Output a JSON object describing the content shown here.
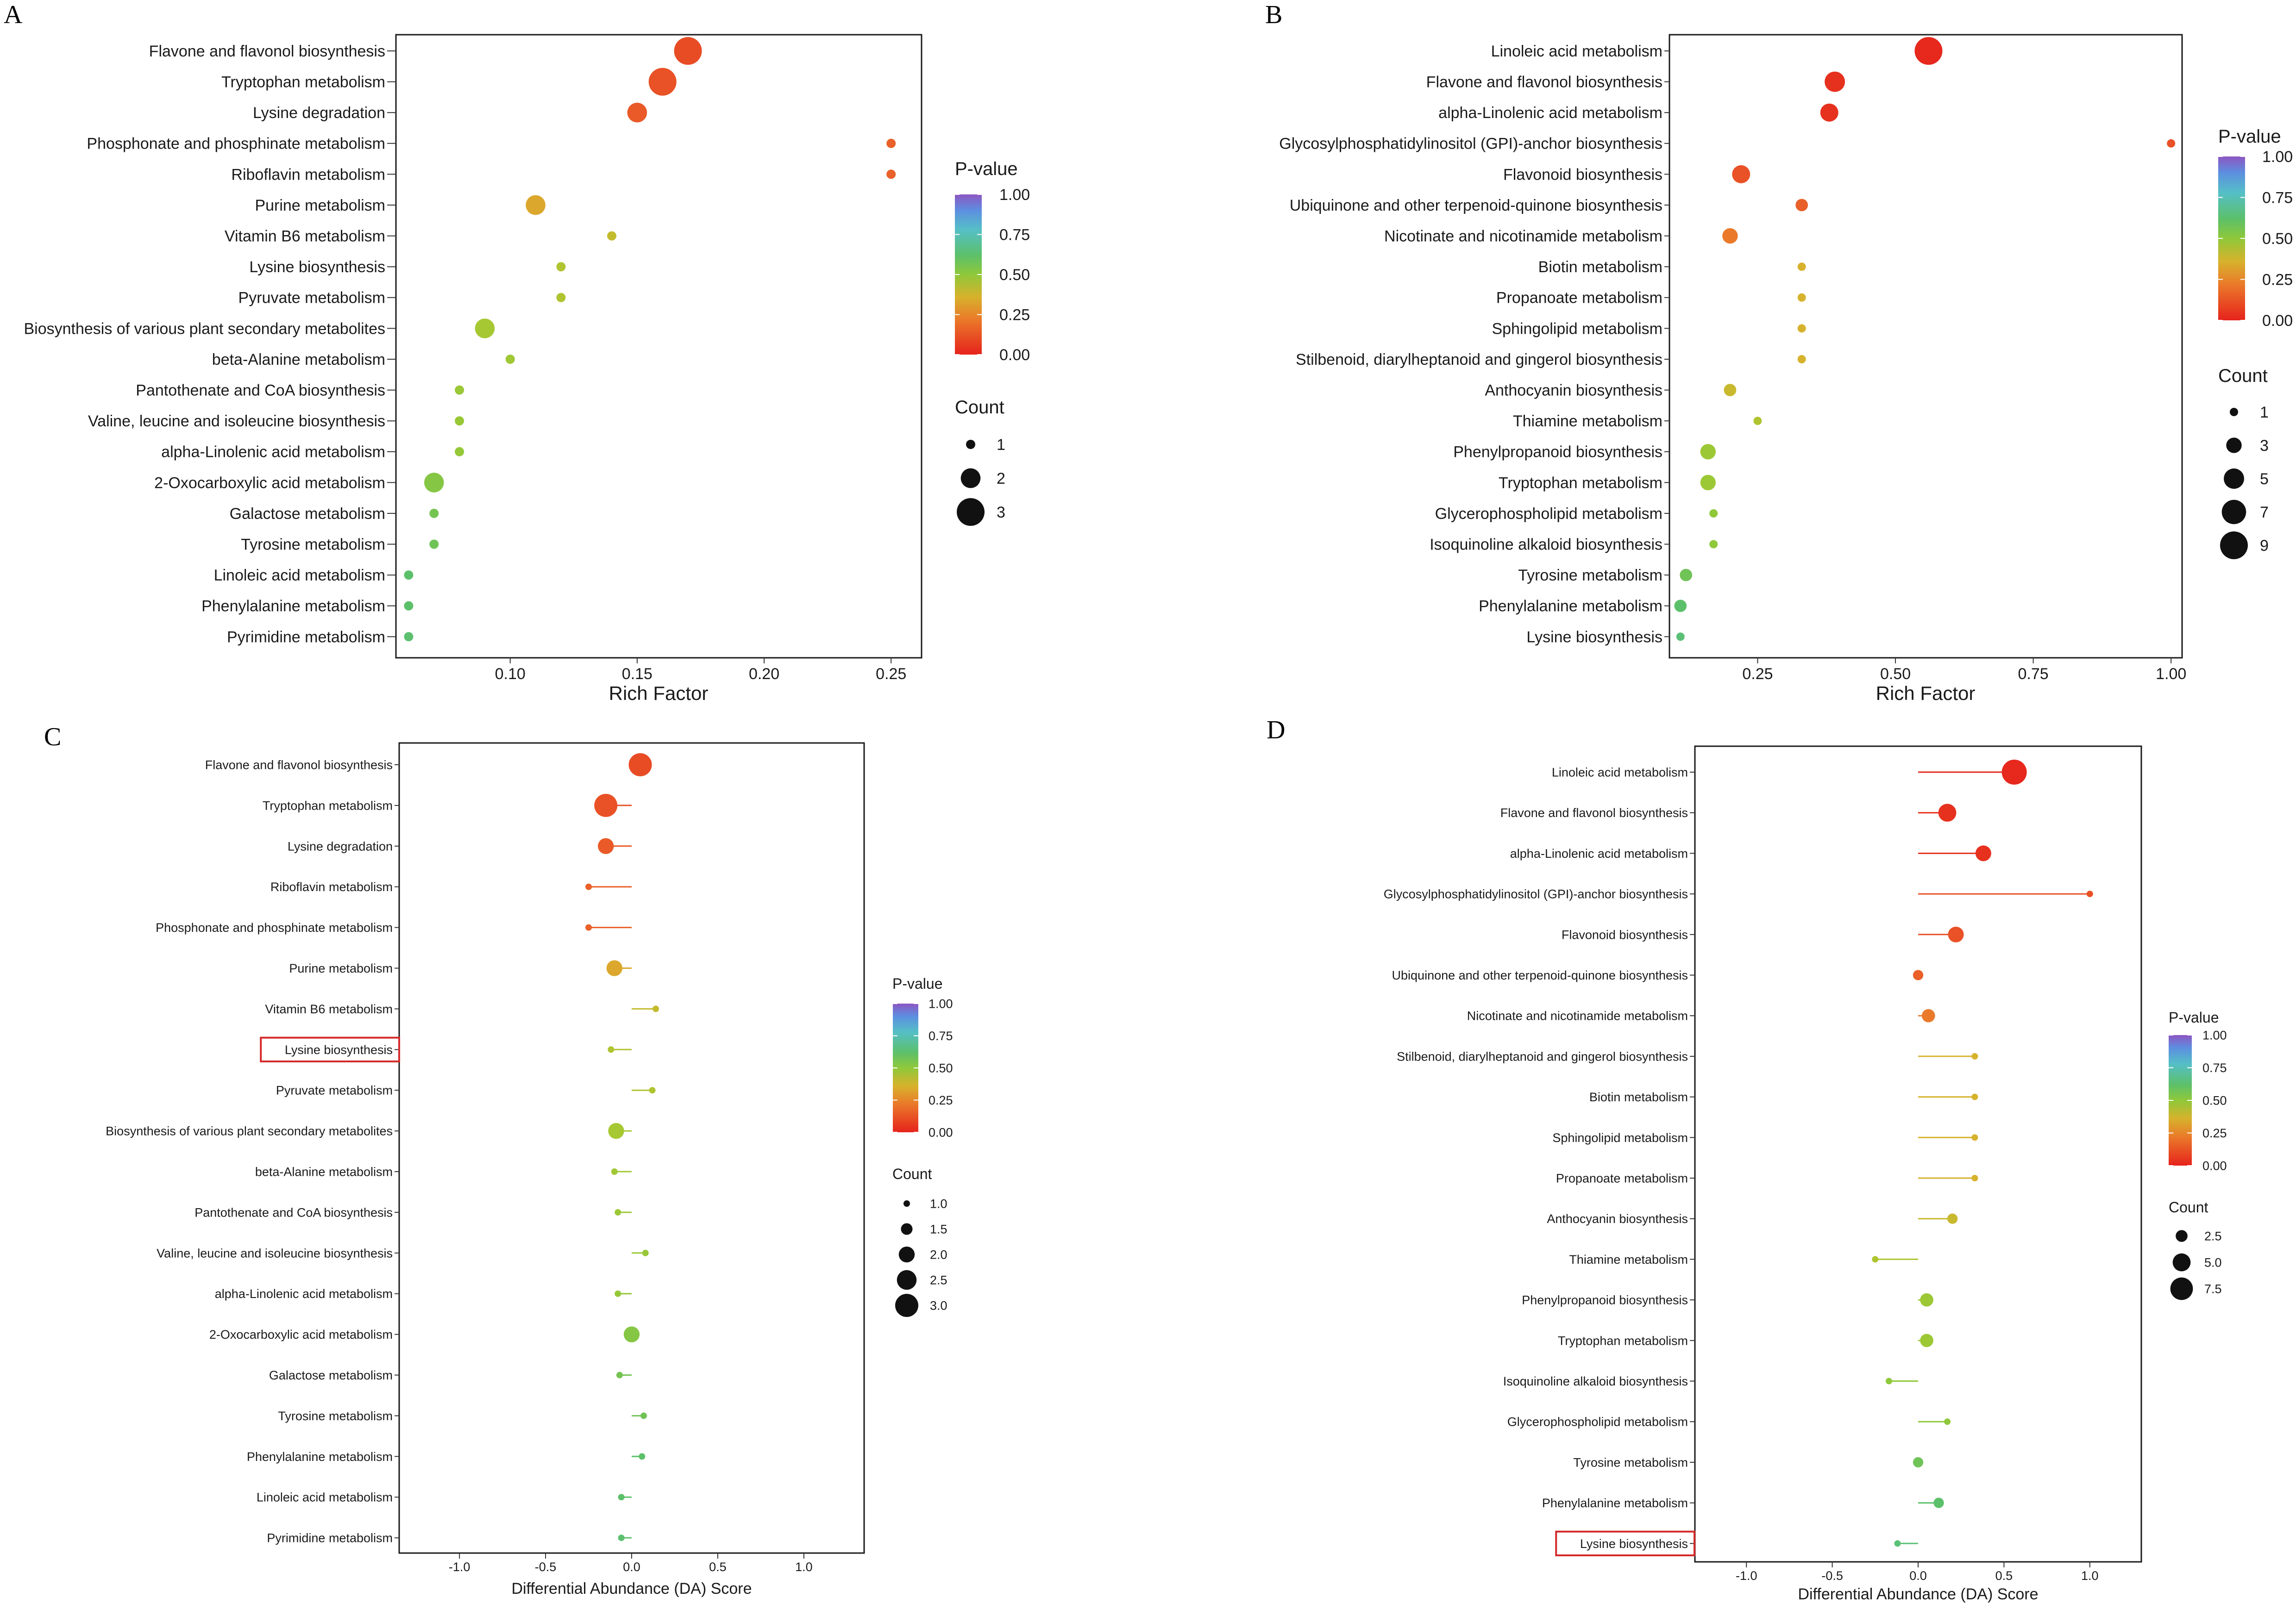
{
  "chart_data": [
    {
      "panel": "A",
      "type": "scatter",
      "xlabel": "Rich Factor",
      "ylabel": "",
      "xlim": [
        0.055,
        0.262
      ],
      "xticks": [
        "0.10",
        "0.15",
        "0.20",
        "0.25"
      ],
      "xtick_values": [
        0.1,
        0.15,
        0.2,
        0.25
      ],
      "legend_colour_title": "P-value",
      "legend_colour_ticks": [
        "1.00",
        "0.75",
        "0.50",
        "0.25",
        "0.00"
      ],
      "legend_size_title": "Count",
      "legend_size_labels": [
        "1",
        "2",
        "3"
      ],
      "legend_size_values": [
        1,
        2,
        3
      ],
      "count_range": [
        1,
        3
      ],
      "pathways": [
        {
          "label": "Flavone and flavonol biosynthesis",
          "x": 0.17,
          "count": 3,
          "p": 0.09
        },
        {
          "label": "Tryptophan metabolism",
          "x": 0.16,
          "count": 3,
          "p": 0.1
        },
        {
          "label": "Lysine degradation",
          "x": 0.15,
          "count": 2,
          "p": 0.12
        },
        {
          "label": "Phosphonate and phosphinate metabolism",
          "x": 0.25,
          "count": 1,
          "p": 0.14
        },
        {
          "label": "Riboflavin metabolism",
          "x": 0.25,
          "count": 1,
          "p": 0.14
        },
        {
          "label": "Purine metabolism",
          "x": 0.11,
          "count": 2,
          "p": 0.3
        },
        {
          "label": "Vitamin B6 metabolism",
          "x": 0.14,
          "count": 1,
          "p": 0.36
        },
        {
          "label": "Lysine biosynthesis",
          "x": 0.12,
          "count": 1,
          "p": 0.4
        },
        {
          "label": "Pyruvate metabolism",
          "x": 0.12,
          "count": 1,
          "p": 0.4
        },
        {
          "label": "Biosynthesis of various plant secondary metabolites",
          "x": 0.09,
          "count": 2,
          "p": 0.42
        },
        {
          "label": "beta-Alanine metabolism",
          "x": 0.1,
          "count": 1,
          "p": 0.44
        },
        {
          "label": "Pantothenate and CoA biosynthesis",
          "x": 0.08,
          "count": 1,
          "p": 0.46
        },
        {
          "label": "Valine, leucine and isoleucine biosynthesis",
          "x": 0.08,
          "count": 1,
          "p": 0.47
        },
        {
          "label": "alpha-Linolenic acid metabolism",
          "x": 0.08,
          "count": 1,
          "p": 0.48
        },
        {
          "label": "2-Oxocarboxylic acid metabolism",
          "x": 0.07,
          "count": 2,
          "p": 0.52
        },
        {
          "label": "Galactose metabolism",
          "x": 0.07,
          "count": 1,
          "p": 0.55
        },
        {
          "label": "Tyrosine metabolism",
          "x": 0.07,
          "count": 1,
          "p": 0.56
        },
        {
          "label": "Linoleic acid metabolism",
          "x": 0.06,
          "count": 1,
          "p": 0.6
        },
        {
          "label": "Phenylalanine metabolism",
          "x": 0.06,
          "count": 1,
          "p": 0.6
        },
        {
          "label": "Pyrimidine metabolism",
          "x": 0.06,
          "count": 1,
          "p": 0.61
        }
      ]
    },
    {
      "panel": "B",
      "type": "scatter",
      "xlabel": "Rich Factor",
      "ylabel": "",
      "xlim": [
        0.09,
        1.02
      ],
      "xticks": [
        "0.25",
        "0.50",
        "0.75",
        "1.00"
      ],
      "xtick_values": [
        0.25,
        0.5,
        0.75,
        1.0
      ],
      "legend_colour_title": "P-value",
      "legend_colour_ticks": [
        "1.00",
        "0.75",
        "0.50",
        "0.25",
        "0.00"
      ],
      "legend_size_title": "Count",
      "legend_size_labels": [
        "1",
        "3",
        "5",
        "7",
        "9"
      ],
      "legend_size_values": [
        1,
        3,
        5,
        7,
        9
      ],
      "count_range": [
        1,
        9
      ],
      "pathways": [
        {
          "label": "Linoleic acid metabolism",
          "x": 0.56,
          "count": 9,
          "p": 0.01
        },
        {
          "label": "Flavone and flavonol biosynthesis",
          "x": 0.39,
          "count": 5,
          "p": 0.03
        },
        {
          "label": "alpha-Linolenic acid metabolism",
          "x": 0.38,
          "count": 4,
          "p": 0.03
        },
        {
          "label": "Glycosylphosphatidylinositol (GPI)-anchor biosynthesis",
          "x": 1.0,
          "count": 1,
          "p": 0.1
        },
        {
          "label": "Flavonoid biosynthesis",
          "x": 0.22,
          "count": 4,
          "p": 0.1
        },
        {
          "label": "Ubiquinone and other terpenoid-quinone biosynthesis",
          "x": 0.33,
          "count": 2,
          "p": 0.14
        },
        {
          "label": "Nicotinate and nicotinamide metabolism",
          "x": 0.2,
          "count": 3,
          "p": 0.22
        },
        {
          "label": "Biotin metabolism",
          "x": 0.33,
          "count": 1,
          "p": 0.32
        },
        {
          "label": "Propanoate metabolism",
          "x": 0.33,
          "count": 1,
          "p": 0.32
        },
        {
          "label": "Sphingolipid metabolism",
          "x": 0.33,
          "count": 1,
          "p": 0.32
        },
        {
          "label": "Stilbenoid, diarylheptanoid and gingerol biosynthesis",
          "x": 0.33,
          "count": 1,
          "p": 0.32
        },
        {
          "label": "Anthocyanin biosynthesis",
          "x": 0.2,
          "count": 2,
          "p": 0.35
        },
        {
          "label": "Thiamine metabolism",
          "x": 0.25,
          "count": 1,
          "p": 0.4
        },
        {
          "label": "Phenylpropanoid biosynthesis",
          "x": 0.16,
          "count": 3,
          "p": 0.45
        },
        {
          "label": "Tryptophan metabolism",
          "x": 0.16,
          "count": 3,
          "p": 0.45
        },
        {
          "label": "Glycerophospholipid metabolism",
          "x": 0.17,
          "count": 1,
          "p": 0.5
        },
        {
          "label": "Isoquinoline alkaloid biosynthesis",
          "x": 0.17,
          "count": 1,
          "p": 0.5
        },
        {
          "label": "Tyrosine metabolism",
          "x": 0.12,
          "count": 2,
          "p": 0.56
        },
        {
          "label": "Phenylalanine metabolism",
          "x": 0.11,
          "count": 2,
          "p": 0.6
        },
        {
          "label": "Lysine biosynthesis",
          "x": 0.11,
          "count": 1,
          "p": 0.62
        }
      ]
    },
    {
      "panel": "C",
      "type": "lollipop",
      "xlabel": "Differential Abundance (DA) Score",
      "ylabel": "",
      "xlim": [
        -1.35,
        1.35
      ],
      "xticks": [
        "-1.0",
        "-0.5",
        "0.0",
        "0.5",
        "1.0"
      ],
      "xtick_values": [
        -1.0,
        -0.5,
        0.0,
        0.5,
        1.0
      ],
      "legend_colour_title": "P-value",
      "legend_colour_ticks": [
        "1.00",
        "0.75",
        "0.50",
        "0.25",
        "0.00"
      ],
      "legend_size_title": "Count",
      "legend_size_labels": [
        "1.0",
        "1.5",
        "2.0",
        "2.5",
        "3.0"
      ],
      "legend_size_values": [
        1.0,
        1.5,
        2.0,
        2.5,
        3.0
      ],
      "count_range": [
        1,
        3
      ],
      "highlighted": "Lysine biosynthesis",
      "pathways": [
        {
          "label": "Flavone and flavonol biosynthesis",
          "x": 0.05,
          "count": 3,
          "p": 0.09
        },
        {
          "label": "Tryptophan metabolism",
          "x": -0.15,
          "count": 3,
          "p": 0.1
        },
        {
          "label": "Lysine degradation",
          "x": -0.15,
          "count": 2,
          "p": 0.12
        },
        {
          "label": "Riboflavin metabolism",
          "x": -0.25,
          "count": 1,
          "p": 0.14
        },
        {
          "label": "Phosphonate and phosphinate metabolism",
          "x": -0.25,
          "count": 1,
          "p": 0.14
        },
        {
          "label": "Purine metabolism",
          "x": -0.1,
          "count": 2,
          "p": 0.3
        },
        {
          "label": "Vitamin B6 metabolism",
          "x": 0.14,
          "count": 1,
          "p": 0.36
        },
        {
          "label": "Lysine biosynthesis",
          "x": -0.12,
          "count": 1,
          "p": 0.4
        },
        {
          "label": "Pyruvate metabolism",
          "x": 0.12,
          "count": 1,
          "p": 0.4
        },
        {
          "label": "Biosynthesis of various plant secondary metabolites",
          "x": -0.09,
          "count": 2,
          "p": 0.42
        },
        {
          "label": "beta-Alanine metabolism",
          "x": -0.1,
          "count": 1,
          "p": 0.44
        },
        {
          "label": "Pantothenate and CoA biosynthesis",
          "x": -0.08,
          "count": 1,
          "p": 0.46
        },
        {
          "label": "Valine, leucine and isoleucine biosynthesis",
          "x": 0.08,
          "count": 1,
          "p": 0.47
        },
        {
          "label": "alpha-Linolenic acid metabolism",
          "x": -0.08,
          "count": 1,
          "p": 0.48
        },
        {
          "label": "2-Oxocarboxylic acid metabolism",
          "x": 0.0,
          "count": 2,
          "p": 0.52
        },
        {
          "label": "Galactose metabolism",
          "x": -0.07,
          "count": 1,
          "p": 0.55
        },
        {
          "label": "Tyrosine metabolism",
          "x": 0.07,
          "count": 1,
          "p": 0.56
        },
        {
          "label": "Phenylalanine metabolism",
          "x": 0.06,
          "count": 1,
          "p": 0.6
        },
        {
          "label": "Linoleic acid metabolism",
          "x": -0.06,
          "count": 1,
          "p": 0.6
        },
        {
          "label": "Pyrimidine metabolism",
          "x": -0.06,
          "count": 1,
          "p": 0.61
        }
      ]
    },
    {
      "panel": "D",
      "type": "lollipop",
      "xlabel": "Differential Abundance (DA) Score",
      "ylabel": "",
      "xlim": [
        -1.3,
        1.3
      ],
      "xticks": [
        "-1.0",
        "-0.5",
        "0.0",
        "0.5",
        "1.0"
      ],
      "xtick_values": [
        -1.0,
        -0.5,
        0.0,
        0.5,
        1.0
      ],
      "legend_colour_title": "P-value",
      "legend_colour_ticks": [
        "1.00",
        "0.75",
        "0.50",
        "0.25",
        "0.00"
      ],
      "legend_size_title": "Count",
      "legend_size_labels": [
        "2.5",
        "5.0",
        "7.5"
      ],
      "legend_size_values": [
        2.5,
        5.0,
        7.5
      ],
      "count_range": [
        1,
        9
      ],
      "highlighted": "Lysine biosynthesis",
      "pathways": [
        {
          "label": "Linoleic acid metabolism",
          "x": 0.56,
          "count": 9,
          "p": 0.01
        },
        {
          "label": "Flavone and flavonol biosynthesis",
          "x": 0.17,
          "count": 5,
          "p": 0.03
        },
        {
          "label": "alpha-Linolenic acid metabolism",
          "x": 0.38,
          "count": 4,
          "p": 0.03
        },
        {
          "label": "Glycosylphosphatidylinositol (GPI)-anchor biosynthesis",
          "x": 1.0,
          "count": 1,
          "p": 0.1
        },
        {
          "label": "Flavonoid biosynthesis",
          "x": 0.22,
          "count": 4,
          "p": 0.1
        },
        {
          "label": "Ubiquinone and other terpenoid-quinone biosynthesis",
          "x": 0.0,
          "count": 2,
          "p": 0.14
        },
        {
          "label": "Nicotinate and nicotinamide metabolism",
          "x": 0.06,
          "count": 3,
          "p": 0.22
        },
        {
          "label": "Stilbenoid, diarylheptanoid and gingerol biosynthesis",
          "x": 0.33,
          "count": 1,
          "p": 0.32
        },
        {
          "label": "Biotin metabolism",
          "x": 0.33,
          "count": 1,
          "p": 0.32
        },
        {
          "label": "Sphingolipid metabolism",
          "x": 0.33,
          "count": 1,
          "p": 0.32
        },
        {
          "label": "Propanoate metabolism",
          "x": 0.33,
          "count": 1,
          "p": 0.32
        },
        {
          "label": "Anthocyanin biosynthesis",
          "x": 0.2,
          "count": 2,
          "p": 0.35
        },
        {
          "label": "Thiamine metabolism",
          "x": -0.25,
          "count": 1,
          "p": 0.4
        },
        {
          "label": "Phenylpropanoid biosynthesis",
          "x": 0.05,
          "count": 3,
          "p": 0.45
        },
        {
          "label": "Tryptophan metabolism",
          "x": 0.05,
          "count": 3,
          "p": 0.45
        },
        {
          "label": "Isoquinoline alkaloid biosynthesis",
          "x": -0.17,
          "count": 1,
          "p": 0.5
        },
        {
          "label": "Glycerophospholipid metabolism",
          "x": 0.17,
          "count": 1,
          "p": 0.5
        },
        {
          "label": "Tyrosine metabolism",
          "x": 0.0,
          "count": 2,
          "p": 0.56
        },
        {
          "label": "Phenylalanine metabolism",
          "x": 0.12,
          "count": 2,
          "p": 0.6
        },
        {
          "label": "Lysine biosynthesis",
          "x": -0.12,
          "count": 1,
          "p": 0.62
        }
      ]
    }
  ]
}
